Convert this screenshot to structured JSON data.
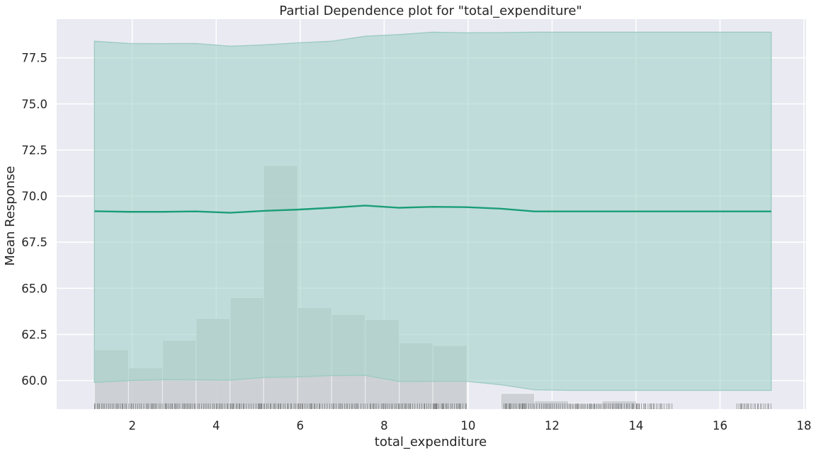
{
  "chart_data": {
    "type": "line",
    "title": "Partial Dependence plot for \"total_expenditure\"",
    "xlabel": "total_expenditure",
    "ylabel": "Mean Response",
    "xlim": [
      0.2,
      18.05
    ],
    "ylim": [
      58.45,
      79.6
    ],
    "x_ticks": [
      2,
      4,
      6,
      8,
      10,
      12,
      14,
      16,
      18
    ],
    "y_ticks": [
      60.0,
      62.5,
      65.0,
      67.5,
      70.0,
      72.5,
      75.0,
      77.5
    ],
    "x_tick_labels": [
      "2",
      "4",
      "6",
      "8",
      "10",
      "12",
      "14",
      "16",
      "18"
    ],
    "y_tick_labels": [
      "60.0",
      "62.5",
      "65.0",
      "67.5",
      "70.0",
      "72.5",
      "75.0",
      "77.5"
    ],
    "grid": true,
    "colors": {
      "background": "#eaeaf2",
      "grid": "#ffffff",
      "line": "#1b9e77",
      "band_fill": "#a6d4cc",
      "band_edge": "#9dccc2",
      "hist_fill": "#c8cbcf",
      "rug": "#333333"
    },
    "pd_line": {
      "x": [
        1.1,
        1.91,
        2.72,
        3.52,
        4.33,
        5.13,
        5.94,
        6.75,
        7.55,
        8.36,
        9.16,
        9.97,
        10.78,
        11.58,
        12.39,
        13.19,
        14.0,
        14.81,
        15.61,
        16.42,
        17.22
      ],
      "y": [
        69.18,
        69.15,
        69.15,
        69.17,
        69.1,
        69.2,
        69.27,
        69.37,
        69.49,
        69.37,
        69.42,
        69.4,
        69.32,
        69.17,
        69.17,
        69.17,
        69.17,
        69.17,
        69.17,
        69.17,
        69.17
      ]
    },
    "confidence_band": {
      "upper": [
        78.4,
        78.28,
        78.27,
        78.28,
        78.13,
        78.2,
        78.31,
        78.4,
        78.67,
        78.76,
        78.89,
        78.86,
        78.87,
        78.89,
        78.89,
        78.89,
        78.89,
        78.89,
        78.89,
        78.89,
        78.89
      ],
      "lower": [
        59.9,
        60.0,
        60.05,
        60.04,
        60.02,
        60.17,
        60.2,
        60.27,
        60.28,
        59.95,
        59.96,
        59.96,
        59.77,
        59.5,
        59.47,
        59.47,
        59.47,
        59.47,
        59.47,
        59.47,
        59.47
      ]
    },
    "histogram": {
      "bin_edges": [
        1.1,
        1.91,
        2.72,
        3.52,
        4.33,
        5.13,
        5.94,
        6.75,
        7.55,
        8.36,
        9.16,
        9.97,
        10.78,
        11.58,
        12.39,
        13.19,
        14.0,
        14.81,
        15.61,
        16.42,
        17.22
      ],
      "tops": [
        61.67,
        60.68,
        62.18,
        63.37,
        64.5,
        71.66,
        63.95,
        63.58,
        63.3,
        62.05,
        61.9,
        58.45,
        59.3,
        58.9,
        58.75,
        58.9,
        58.5,
        58.45,
        58.45,
        58.5
      ]
    },
    "rug_ranges": [
      [
        1.1,
        9.97
      ],
      [
        10.85,
        14.9
      ],
      [
        16.4,
        17.22
      ]
    ]
  }
}
